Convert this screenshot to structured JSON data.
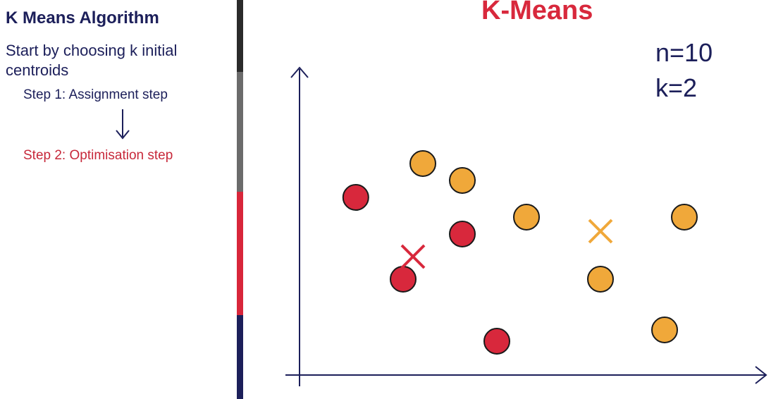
{
  "sidebar": {
    "title": "K Means Algorithm",
    "intro": "Start by choosing k initial centroids",
    "step1": "Step 1: Assignment step",
    "step2": "Step 2: Optimisation step"
  },
  "progress": {
    "segments": [
      {
        "label": "intro",
        "color": "#2b2b2b",
        "fraction": 0.18
      },
      {
        "label": "step1",
        "color": "#6b6b6b",
        "fraction": 0.3
      },
      {
        "label": "step2",
        "color": "#d8263a",
        "fraction": 0.31
      },
      {
        "label": "remaining",
        "color": "#1c1f5a",
        "fraction": 0.21
      }
    ]
  },
  "colors": {
    "navy": "#1c1f5a",
    "red": "#d8283c",
    "orange": "#f0a83a",
    "step2_text": "#c7283a"
  },
  "chart_data": {
    "type": "scatter",
    "title": "K-Means",
    "xlabel": "",
    "ylabel": "",
    "grid": false,
    "annotations": [
      "n=10",
      "k=2"
    ],
    "series": [
      {
        "cluster": "red",
        "color": "#d8283c",
        "points": [
          [
            1.14,
            6.3
          ],
          [
            2.1,
            3.4
          ],
          [
            3.3,
            5.0
          ],
          [
            4.0,
            1.2
          ]
        ]
      },
      {
        "cluster": "orange",
        "color": "#f0a83a",
        "points": [
          [
            2.5,
            7.5
          ],
          [
            3.3,
            6.9
          ],
          [
            4.6,
            5.6
          ],
          [
            6.1,
            3.4
          ],
          [
            7.4,
            1.6
          ],
          [
            7.8,
            5.6
          ]
        ]
      }
    ],
    "centroids": [
      {
        "cluster": "red",
        "color": "#d8283c",
        "x": 2.3,
        "y": 4.2
      },
      {
        "cluster": "orange",
        "color": "#f0a83a",
        "x": 6.1,
        "y": 5.1
      }
    ],
    "xlim": [
      0,
      9.5
    ],
    "ylim": [
      0,
      9.5
    ]
  }
}
